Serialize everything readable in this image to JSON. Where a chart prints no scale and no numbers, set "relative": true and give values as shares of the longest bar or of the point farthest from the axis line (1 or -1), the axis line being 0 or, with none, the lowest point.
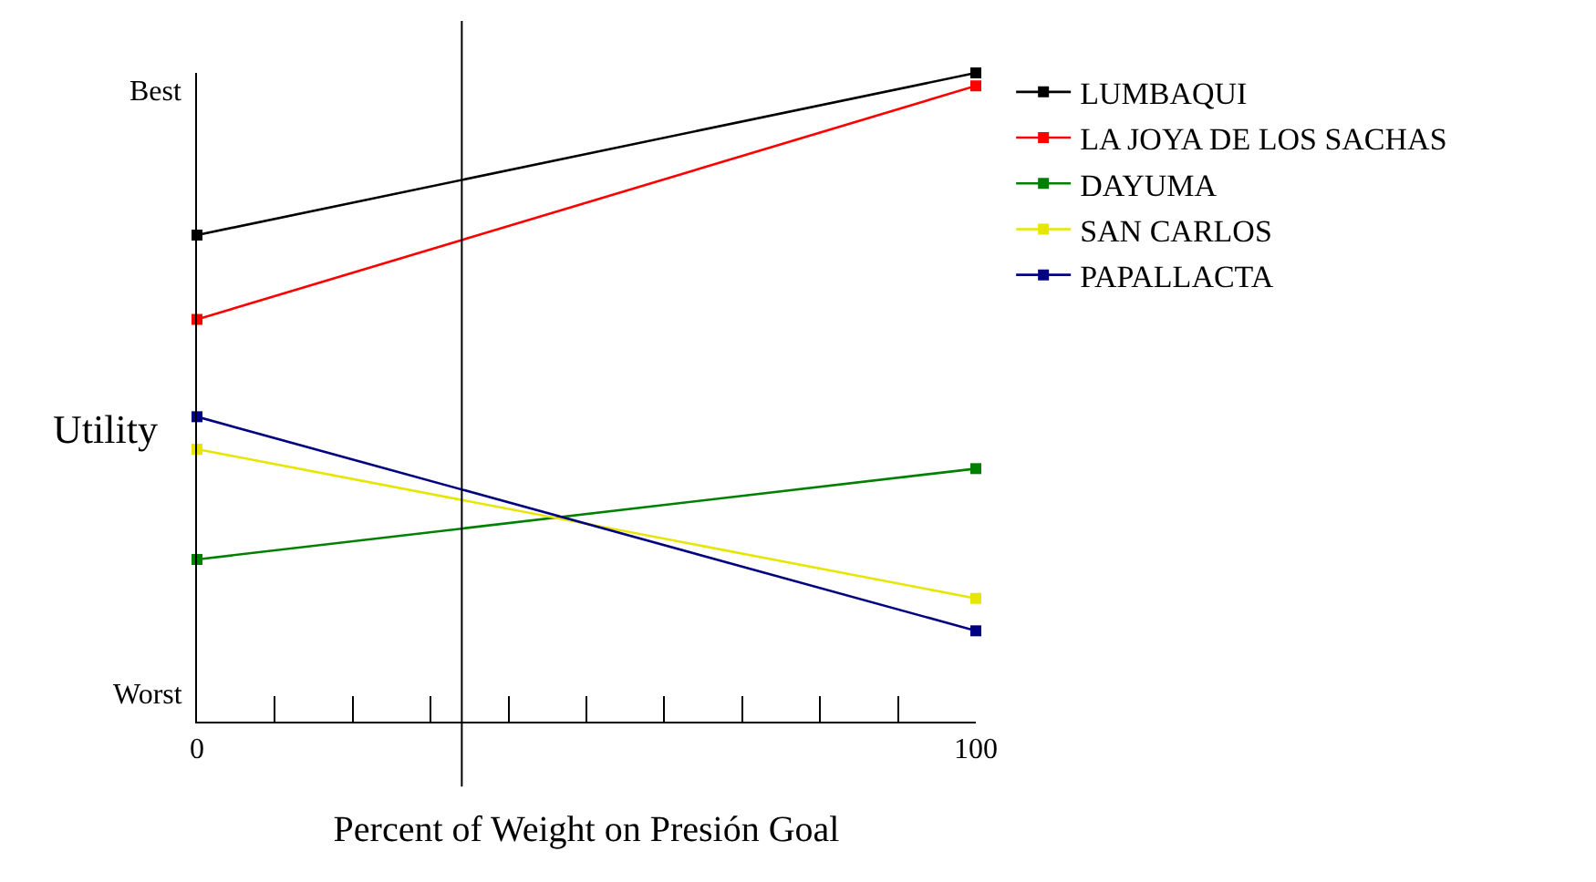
{
  "chart_data": {
    "type": "line",
    "xlabel": "Percent of Weight on Presión Goal",
    "ylabel": "Utility",
    "x": [
      0,
      100
    ],
    "series": [
      {
        "name": "LUMBAQUI",
        "color": "#000000",
        "values": [
          0.75,
          1
        ]
      },
      {
        "name": "LA JOYA DE LOS SACHAS",
        "color": "#ff0000",
        "values": [
          0.62,
          0.98
        ]
      },
      {
        "name": "DAYUMA",
        "color": "#008000",
        "values": [
          0.25,
          0.39
        ]
      },
      {
        "name": "SAN CARLOS",
        "color": "#e6e600",
        "values": [
          0.42,
          0.19
        ]
      },
      {
        "name": "PAPALLACTA",
        "color": "#000080",
        "values": [
          0.47,
          0.14
        ]
      }
    ],
    "xlim": [
      0,
      100
    ],
    "xticks": [
      0,
      {
        "value": 10,
        "label": null
      },
      {
        "value": 20,
        "label": null
      },
      {
        "value": 30,
        "label": null
      },
      {
        "value": 40,
        "label": null
      },
      {
        "value": 50,
        "label": null
      },
      {
        "value": 60,
        "label": null
      },
      {
        "value": 70,
        "label": null
      },
      {
        "value": 80,
        "label": null
      },
      {
        "value": 90,
        "label": null
      },
      100
    ],
    "relative": true,
    "annotations": [
      "Best",
      "Worst"
    ],
    "ref_lines": [
      {
        "axis": "x",
        "value": 34,
        "color": "#000000"
      }
    ],
    "marker": "square",
    "line_style": "solid",
    "legend": "right"
  }
}
